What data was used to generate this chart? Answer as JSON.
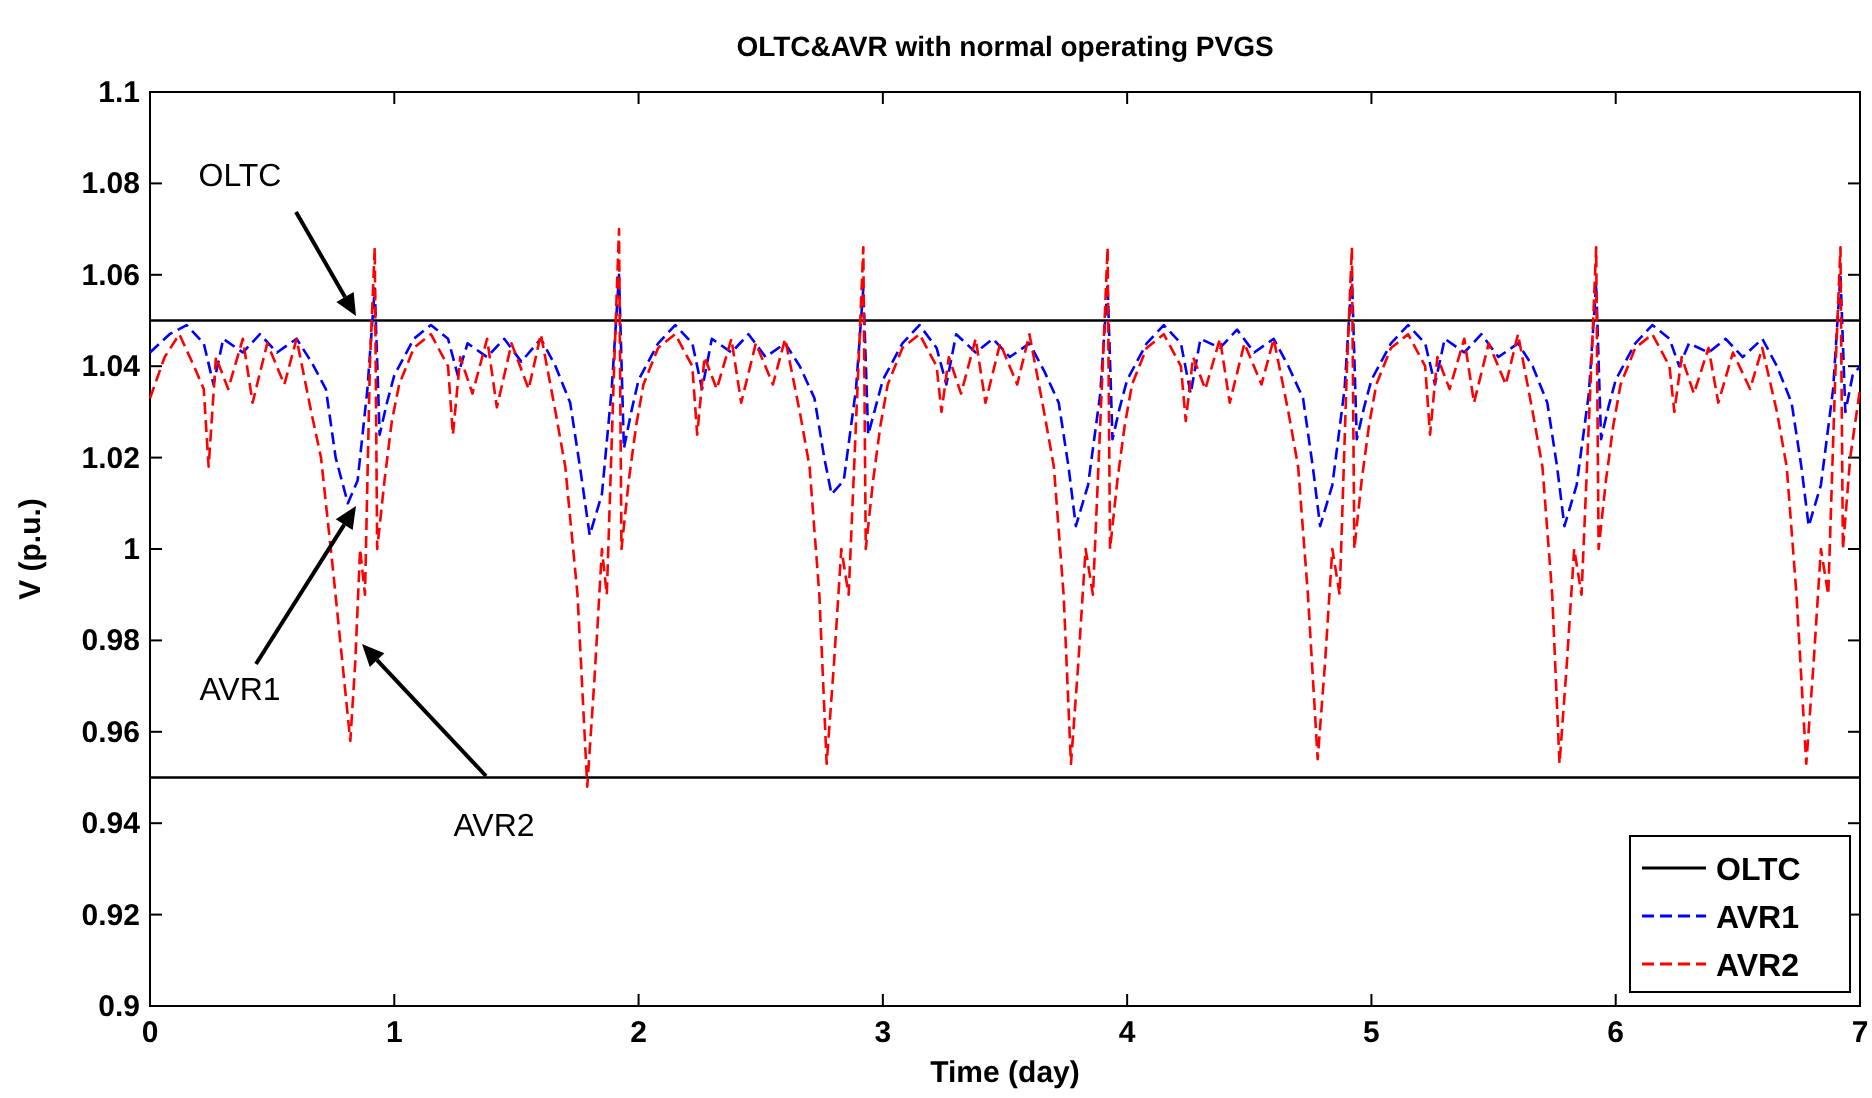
{
  "chart_data": {
    "type": "line",
    "title": "OLTC&AVR with normal operating PVGS",
    "xlabel": "Time (day)",
    "ylabel": "V (p.u.)",
    "xlim": [
      0,
      7
    ],
    "xticks": [
      0,
      1,
      2,
      3,
      4,
      5,
      6,
      7
    ],
    "ylim": [
      0.9,
      1.1
    ],
    "yticks": [
      0.9,
      0.92,
      0.94,
      0.96,
      0.98,
      1,
      1.02,
      1.04,
      1.06,
      1.08,
      1.1
    ],
    "grid": false,
    "legend": "bottom right",
    "ref_lines": [
      {
        "axis": "y",
        "value": 0.95,
        "color": "#000000",
        "line_style": "solid"
      }
    ],
    "annotations": [
      "OLTC",
      "AVR1",
      "AVR2"
    ],
    "series": [
      {
        "name": "OLTC",
        "color": "#000000",
        "line_style": "solid",
        "x": [
          0,
          7
        ],
        "values": [
          1.05,
          1.05
        ]
      },
      {
        "name": "AVR1",
        "color": "#0000ff",
        "line_style": "dashed",
        "x": [
          0,
          0.08,
          0.15,
          0.22,
          0.26,
          0.3,
          0.38,
          0.45,
          0.52,
          0.6,
          0.66,
          0.72,
          0.76,
          0.81,
          0.85,
          0.89,
          0.92,
          0.94,
          0.97,
          1.0,
          1.08,
          1.15,
          1.22,
          1.26,
          1.3,
          1.38,
          1.45,
          1.52,
          1.6,
          1.66,
          1.72,
          1.76,
          1.8,
          1.85,
          1.89,
          1.92,
          1.94,
          1.97,
          2.0,
          2.08,
          2.15,
          2.22,
          2.26,
          2.3,
          2.38,
          2.45,
          2.52,
          2.6,
          2.66,
          2.72,
          2.76,
          2.79,
          2.84,
          2.89,
          2.92,
          2.94,
          2.97,
          3.0,
          3.08,
          3.15,
          3.22,
          3.26,
          3.3,
          3.38,
          3.45,
          3.52,
          3.6,
          3.66,
          3.72,
          3.76,
          3.79,
          3.84,
          3.89,
          3.92,
          3.94,
          3.97,
          4.0,
          4.08,
          4.15,
          4.22,
          4.26,
          4.3,
          4.38,
          4.45,
          4.52,
          4.6,
          4.66,
          4.72,
          4.76,
          4.79,
          4.84,
          4.89,
          4.92,
          4.94,
          4.97,
          5.0,
          5.08,
          5.15,
          5.22,
          5.26,
          5.3,
          5.38,
          5.45,
          5.52,
          5.6,
          5.66,
          5.72,
          5.76,
          5.79,
          5.84,
          5.89,
          5.92,
          5.94,
          5.97,
          6.0,
          6.08,
          6.15,
          6.22,
          6.26,
          6.3,
          6.38,
          6.45,
          6.52,
          6.6,
          6.66,
          6.72,
          6.76,
          6.79,
          6.84,
          6.89,
          6.92,
          6.94,
          6.97,
          7.0
        ],
        "values": [
          1.043,
          1.047,
          1.049,
          1.045,
          1.036,
          1.046,
          1.043,
          1.047,
          1.043,
          1.046,
          1.041,
          1.035,
          1.02,
          1.01,
          1.015,
          1.035,
          1.057,
          1.025,
          1.032,
          1.038,
          1.046,
          1.049,
          1.046,
          1.038,
          1.045,
          1.042,
          1.046,
          1.041,
          1.046,
          1.04,
          1.032,
          1.018,
          1.003,
          1.012,
          1.035,
          1.06,
          1.022,
          1.03,
          1.037,
          1.045,
          1.049,
          1.045,
          1.035,
          1.046,
          1.043,
          1.047,
          1.042,
          1.045,
          1.04,
          1.033,
          1.02,
          1.012,
          1.015,
          1.035,
          1.057,
          1.025,
          1.031,
          1.037,
          1.045,
          1.049,
          1.044,
          1.036,
          1.047,
          1.043,
          1.046,
          1.042,
          1.045,
          1.039,
          1.032,
          1.018,
          1.005,
          1.014,
          1.034,
          1.058,
          1.024,
          1.031,
          1.037,
          1.045,
          1.049,
          1.045,
          1.034,
          1.046,
          1.044,
          1.048,
          1.043,
          1.046,
          1.04,
          1.033,
          1.018,
          1.005,
          1.014,
          1.035,
          1.06,
          1.024,
          1.031,
          1.037,
          1.045,
          1.049,
          1.045,
          1.036,
          1.046,
          1.043,
          1.047,
          1.042,
          1.045,
          1.04,
          1.032,
          1.018,
          1.005,
          1.014,
          1.034,
          1.058,
          1.024,
          1.031,
          1.037,
          1.045,
          1.049,
          1.046,
          1.04,
          1.045,
          1.043,
          1.046,
          1.042,
          1.046,
          1.04,
          1.032,
          1.018,
          1.005,
          1.014,
          1.035,
          1.06,
          1.03,
          1.038,
          1.04
        ]
      },
      {
        "name": "AVR2",
        "color": "#ff0000",
        "line_style": "dashed",
        "x": [
          0,
          0.06,
          0.12,
          0.18,
          0.22,
          0.24,
          0.27,
          0.32,
          0.38,
          0.42,
          0.48,
          0.55,
          0.6,
          0.66,
          0.7,
          0.75,
          0.82,
          0.84,
          0.86,
          0.88,
          0.9,
          0.92,
          0.93,
          0.96,
          0.99,
          1.02,
          1.08,
          1.15,
          1.22,
          1.24,
          1.27,
          1.32,
          1.38,
          1.42,
          1.48,
          1.55,
          1.6,
          1.66,
          1.7,
          1.75,
          1.79,
          1.82,
          1.85,
          1.87,
          1.9,
          1.92,
          1.93,
          1.96,
          1.99,
          2.02,
          2.08,
          2.15,
          2.22,
          2.24,
          2.27,
          2.32,
          2.38,
          2.42,
          2.48,
          2.55,
          2.6,
          2.66,
          2.7,
          2.74,
          2.77,
          2.8,
          2.83,
          2.86,
          2.9,
          2.92,
          2.93,
          2.96,
          2.99,
          3.02,
          3.08,
          3.15,
          3.22,
          3.24,
          3.27,
          3.32,
          3.38,
          3.42,
          3.48,
          3.55,
          3.6,
          3.66,
          3.7,
          3.74,
          3.77,
          3.8,
          3.83,
          3.86,
          3.9,
          3.92,
          3.93,
          3.96,
          3.99,
          4.02,
          4.08,
          4.15,
          4.22,
          4.24,
          4.27,
          4.32,
          4.38,
          4.42,
          4.48,
          4.55,
          4.6,
          4.66,
          4.7,
          4.74,
          4.78,
          4.81,
          4.84,
          4.87,
          4.9,
          4.92,
          4.93,
          4.96,
          4.99,
          5.02,
          5.08,
          5.15,
          5.22,
          5.24,
          5.27,
          5.32,
          5.38,
          5.42,
          5.48,
          5.55,
          5.6,
          5.66,
          5.7,
          5.74,
          5.77,
          5.8,
          5.83,
          5.86,
          5.9,
          5.92,
          5.93,
          5.96,
          5.99,
          6.02,
          6.08,
          6.15,
          6.22,
          6.24,
          6.27,
          6.32,
          6.38,
          6.42,
          6.48,
          6.55,
          6.6,
          6.66,
          6.7,
          6.74,
          6.78,
          6.81,
          6.84,
          6.87,
          6.9,
          6.92,
          6.93,
          6.96,
          7.0
        ],
        "values": [
          1.033,
          1.042,
          1.047,
          1.04,
          1.035,
          1.018,
          1.042,
          1.035,
          1.046,
          1.032,
          1.045,
          1.036,
          1.046,
          1.03,
          1.02,
          0.995,
          0.958,
          0.975,
          1.0,
          0.99,
          1.04,
          1.066,
          1.0,
          1.015,
          1.028,
          1.036,
          1.044,
          1.047,
          1.04,
          1.025,
          1.042,
          1.034,
          1.046,
          1.031,
          1.045,
          1.035,
          1.047,
          1.03,
          1.018,
          0.99,
          0.948,
          0.972,
          1.0,
          0.99,
          1.04,
          1.07,
          1.0,
          1.015,
          1.027,
          1.036,
          1.044,
          1.047,
          1.04,
          1.025,
          1.042,
          1.035,
          1.046,
          1.032,
          1.045,
          1.036,
          1.046,
          1.03,
          1.018,
          0.99,
          0.953,
          0.975,
          1.0,
          0.99,
          1.04,
          1.066,
          1.0,
          1.015,
          1.027,
          1.036,
          1.044,
          1.047,
          1.04,
          1.03,
          1.042,
          1.034,
          1.046,
          1.032,
          1.045,
          1.036,
          1.047,
          1.03,
          1.018,
          0.99,
          0.953,
          0.975,
          1.0,
          0.99,
          1.04,
          1.066,
          1.0,
          1.015,
          1.027,
          1.036,
          1.044,
          1.047,
          1.04,
          1.028,
          1.042,
          1.035,
          1.046,
          1.032,
          1.045,
          1.036,
          1.046,
          1.03,
          1.018,
          0.99,
          0.954,
          0.975,
          1.0,
          0.99,
          1.04,
          1.066,
          1.0,
          1.015,
          1.027,
          1.036,
          1.044,
          1.047,
          1.04,
          1.025,
          1.042,
          1.035,
          1.046,
          1.032,
          1.045,
          1.036,
          1.047,
          1.03,
          1.018,
          0.99,
          0.953,
          0.975,
          1.0,
          0.99,
          1.04,
          1.066,
          1.0,
          1.015,
          1.027,
          1.036,
          1.044,
          1.047,
          1.04,
          1.03,
          1.042,
          1.034,
          1.044,
          1.032,
          1.043,
          1.035,
          1.044,
          1.03,
          1.018,
          0.99,
          0.953,
          0.975,
          1.0,
          0.99,
          1.04,
          1.066,
          1.0,
          1.02,
          1.035
        ]
      }
    ]
  }
}
